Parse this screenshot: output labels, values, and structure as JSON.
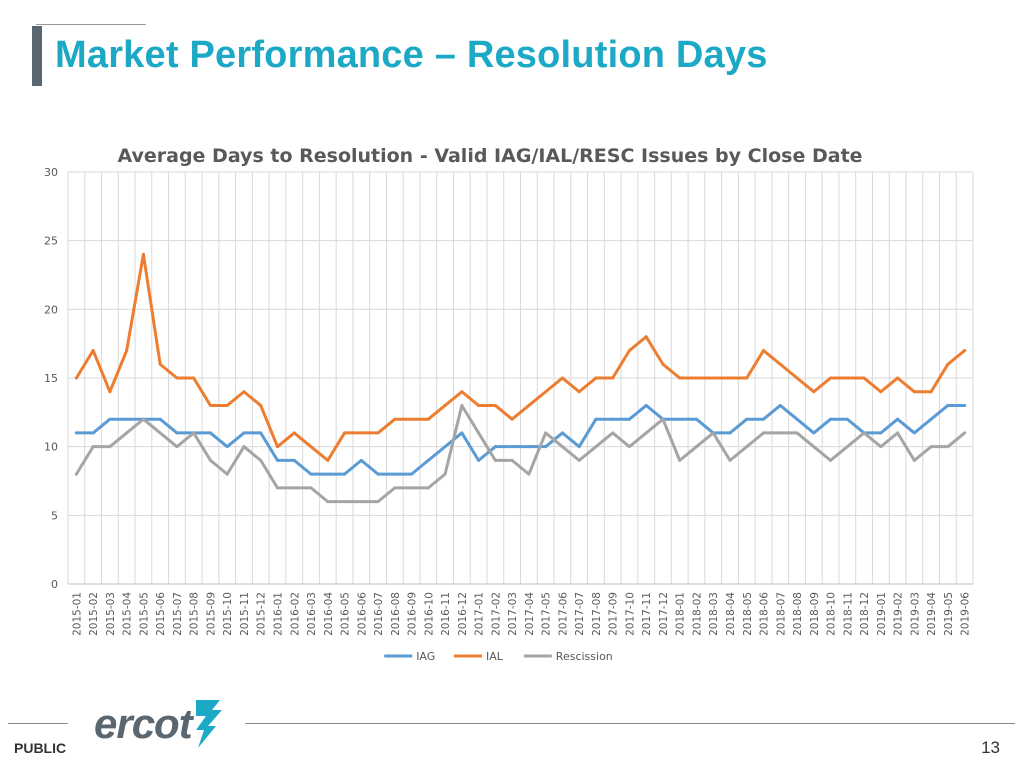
{
  "slide": {
    "title": "Market Performance – Resolution Days",
    "footer_label": "PUBLIC",
    "page_number": "13",
    "logo_text": "ercot"
  },
  "colors": {
    "title": "#1ba9c5",
    "iag": "#5b9bd5",
    "ial": "#ed7d31",
    "rescission": "#a5a5a5",
    "gridline": "#d9d9d9"
  },
  "chart_data": {
    "type": "line",
    "title": "Average Days to Resolution - Valid IAG/IAL/RESC Issues by Close Date",
    "xlabel": "",
    "ylabel": "",
    "ylim": [
      0,
      30
    ],
    "yticks": [
      0,
      5,
      10,
      15,
      20,
      25,
      30
    ],
    "grid": true,
    "legend_position": "bottom",
    "categories": [
      "2015-01",
      "2015-02",
      "2015-03",
      "2015-04",
      "2015-05",
      "2015-06",
      "2015-07",
      "2015-08",
      "2015-09",
      "2015-10",
      "2015-11",
      "2015-12",
      "2016-01",
      "2016-02",
      "2016-03",
      "2016-04",
      "2016-05",
      "2016-06",
      "2016-07",
      "2016-08",
      "2016-09",
      "2016-10",
      "2016-11",
      "2016-12",
      "2017-01",
      "2017-02",
      "2017-03",
      "2017-04",
      "2017-05",
      "2017-06",
      "2017-07",
      "2017-08",
      "2017-09",
      "2017-10",
      "2017-11",
      "2017-12",
      "2018-01",
      "2018-02",
      "2018-03",
      "2018-04",
      "2018-05",
      "2018-06",
      "2018-07",
      "2018-08",
      "2018-09",
      "2018-10",
      "2018-11",
      "2018-12",
      "2019-01",
      "2019-02",
      "2019-03",
      "2019-04",
      "2019-05",
      "2019-06"
    ],
    "series": [
      {
        "name": "IAG",
        "values": [
          11,
          11,
          12,
          12,
          12,
          12,
          11,
          11,
          11,
          10,
          11,
          11,
          9,
          9,
          8,
          8,
          8,
          9,
          8,
          8,
          8,
          9,
          10,
          11,
          9,
          10,
          10,
          10,
          10,
          11,
          10,
          12,
          12,
          12,
          13,
          12,
          12,
          12,
          11,
          11,
          12,
          12,
          13,
          12,
          11,
          12,
          12,
          11,
          11,
          12,
          11,
          12,
          13,
          13
        ]
      },
      {
        "name": "IAL",
        "values": [
          15,
          17,
          14,
          17,
          24,
          16,
          15,
          15,
          13,
          13,
          14,
          13,
          10,
          11,
          10,
          9,
          11,
          11,
          11,
          12,
          12,
          12,
          13,
          14,
          13,
          13,
          12,
          13,
          14,
          15,
          14,
          15,
          15,
          17,
          18,
          16,
          15,
          15,
          15,
          15,
          15,
          17,
          16,
          15,
          14,
          15,
          15,
          15,
          14,
          15,
          14,
          14,
          16,
          17
        ]
      },
      {
        "name": "Rescission",
        "values": [
          8,
          10,
          10,
          11,
          12,
          11,
          10,
          11,
          9,
          8,
          10,
          9,
          7,
          7,
          7,
          6,
          6,
          6,
          6,
          7,
          7,
          7,
          8,
          13,
          11,
          9,
          9,
          8,
          11,
          10,
          9,
          10,
          11,
          10,
          11,
          12,
          9,
          10,
          11,
          9,
          10,
          11,
          11,
          11,
          10,
          9,
          10,
          11,
          10,
          11,
          9,
          10,
          10,
          11
        ]
      }
    ]
  }
}
